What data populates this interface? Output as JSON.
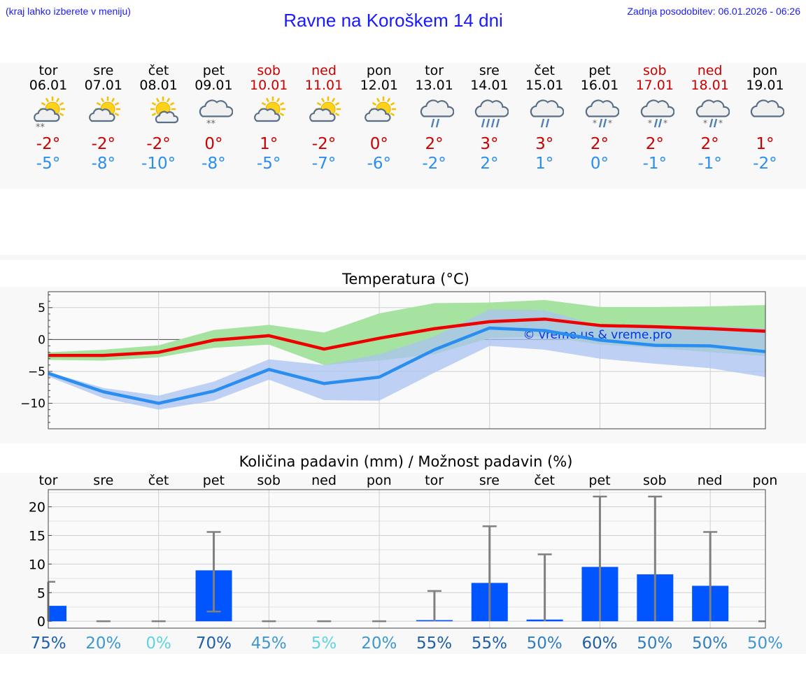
{
  "header": {
    "hint": "(kraj lahko izberete v meniju)",
    "title": "Ravne na Koroškem 14 dni",
    "updated": "Zadnja posodobitev: 06.01.2026 - 06:26"
  },
  "days": [
    {
      "name": "tor",
      "date": "06.01",
      "icon": "sun-cloud-snow-icon",
      "max": "-2°",
      "min": "-5°",
      "weekend": false
    },
    {
      "name": "sre",
      "date": "07.01",
      "icon": "sun-cloud-icon",
      "max": "-2°",
      "min": "-8°",
      "weekend": false
    },
    {
      "name": "čet",
      "date": "08.01",
      "icon": "sun-small-cloud-icon",
      "max": "-2°",
      "min": "-10°",
      "weekend": false
    },
    {
      "name": "pet",
      "date": "09.01",
      "icon": "cloud-snow-icon",
      "max": "0°",
      "min": "-8°",
      "weekend": false
    },
    {
      "name": "sob",
      "date": "10.01",
      "icon": "sun-cloud-icon",
      "max": "1°",
      "min": "-5°",
      "weekend": true
    },
    {
      "name": "ned",
      "date": "11.01",
      "icon": "sun-cloud-icon",
      "max": "-2°",
      "min": "-7°",
      "weekend": true
    },
    {
      "name": "pon",
      "date": "12.01",
      "icon": "sun-cloud-icon",
      "max": "0°",
      "min": "-6°",
      "weekend": false
    },
    {
      "name": "tor",
      "date": "13.01",
      "icon": "cloud-rain-icon",
      "max": "2°",
      "min": "-2°",
      "weekend": false
    },
    {
      "name": "sre",
      "date": "14.01",
      "icon": "cloud-heavy-rain-icon",
      "max": "3°",
      "min": "2°",
      "weekend": false
    },
    {
      "name": "čet",
      "date": "15.01",
      "icon": "cloud-rain-icon",
      "max": "3°",
      "min": "1°",
      "weekend": false
    },
    {
      "name": "pet",
      "date": "16.01",
      "icon": "cloud-sleet-icon",
      "max": "2°",
      "min": "0°",
      "weekend": false
    },
    {
      "name": "sob",
      "date": "17.01",
      "icon": "cloud-sleet-icon",
      "max": "2°",
      "min": "-1°",
      "weekend": true
    },
    {
      "name": "ned",
      "date": "18.01",
      "icon": "cloud-sleet-icon",
      "max": "2°",
      "min": "-1°",
      "weekend": true
    },
    {
      "name": "pon",
      "date": "19.01",
      "icon": "cloud-icon",
      "max": "1°",
      "min": "-2°",
      "weekend": false
    }
  ],
  "colors": {
    "max_line": "#ee0000",
    "min_line": "#2a8ef0",
    "max_band": "#a6e3a1",
    "min_band": "#a9c3f2",
    "overlap_band": "#7fbfa6",
    "bar": "#0055ff",
    "errbar": "#808080",
    "watermark": "#0033ee"
  },
  "chart_data": [
    {
      "type": "line",
      "title": "Temperatura (°C)",
      "watermark": "© vreme.us & vreme.pro",
      "ylim": [
        -14,
        7.5
      ],
      "yticks": [
        5,
        0,
        -5,
        -10
      ],
      "ytick_labels": [
        "5",
        "0",
        "−5",
        "−10"
      ],
      "x": [
        0,
        1,
        2,
        3,
        4,
        5,
        6,
        7,
        8,
        9,
        10,
        11,
        12,
        13
      ],
      "series": [
        {
          "name": "max",
          "values": [
            -2.5,
            -2.5,
            -2.0,
            -0.1,
            0.6,
            -1.5,
            0.2,
            1.7,
            2.8,
            3.2,
            2.2,
            2.0,
            1.7,
            1.3
          ]
        },
        {
          "name": "min",
          "values": [
            -5.3,
            -8.2,
            -10.0,
            -8.1,
            -4.7,
            -6.9,
            -5.9,
            -1.6,
            1.8,
            1.4,
            -0.1,
            -0.9,
            -1.0,
            -1.9
          ]
        }
      ],
      "bands": [
        {
          "name": "max-range",
          "lower": [
            -3.2,
            -3.3,
            -2.8,
            -1.3,
            -0.8,
            -4.0,
            -3.3,
            -2.3,
            0.2,
            0.5,
            -0.8,
            -1.3,
            -2.0,
            -2.6
          ],
          "upper": [
            -2.0,
            -1.6,
            -0.9,
            1.5,
            2.3,
            1.1,
            4.1,
            5.7,
            5.8,
            6.2,
            5.1,
            5.1,
            5.2,
            5.4
          ]
        },
        {
          "name": "min-range",
          "lower": [
            -5.8,
            -9.2,
            -11.0,
            -9.6,
            -6.3,
            -9.5,
            -9.6,
            -5.2,
            -1.0,
            -1.6,
            -3.0,
            -3.8,
            -4.5,
            -5.9
          ],
          "upper": [
            -5.1,
            -7.6,
            -8.8,
            -6.6,
            -3.1,
            -4.0,
            -2.3,
            0.5,
            4.7,
            4.6,
            2.1,
            2.1,
            2.1,
            1.8
          ]
        }
      ]
    },
    {
      "type": "bar",
      "title": "Količina padavin (mm) / Možnost padavin (%)",
      "categories": [
        "tor",
        "sre",
        "čet",
        "pet",
        "sob",
        "ned",
        "pon",
        "tor",
        "sre",
        "čet",
        "pet",
        "sob",
        "ned",
        "pon"
      ],
      "ylim": [
        -1.2,
        23
      ],
      "yticks": [
        20,
        15,
        10,
        5,
        0
      ],
      "values": [
        2.7,
        0,
        0,
        8.9,
        0,
        0,
        0,
        0.2,
        6.7,
        0.3,
        9.5,
        8.2,
        6.2,
        0
      ],
      "error_high": [
        6.9,
        0,
        0,
        15.6,
        0,
        0,
        0,
        5.3,
        16.6,
        11.7,
        21.8,
        21.8,
        15.6,
        0
      ],
      "error_low": [
        0,
        0,
        0,
        1.7,
        0,
        0,
        0,
        0,
        0,
        0,
        0,
        0,
        0,
        0
      ],
      "probability": [
        "75%",
        "20%",
        "0%",
        "70%",
        "45%",
        "5%",
        "20%",
        "55%",
        "55%",
        "50%",
        "60%",
        "50%",
        "50%",
        "50%"
      ],
      "probability_colors": [
        "#1f5fa8",
        "#3f97d0",
        "#5fd3e0",
        "#1f5fa8",
        "#3f97d0",
        "#5fd3e0",
        "#3f97d0",
        "#1f5fa8",
        "#1f5fa8",
        "#2f7fc0",
        "#1f5fa8",
        "#2f7fc0",
        "#2f7fc0",
        "#3f97d0"
      ]
    }
  ]
}
